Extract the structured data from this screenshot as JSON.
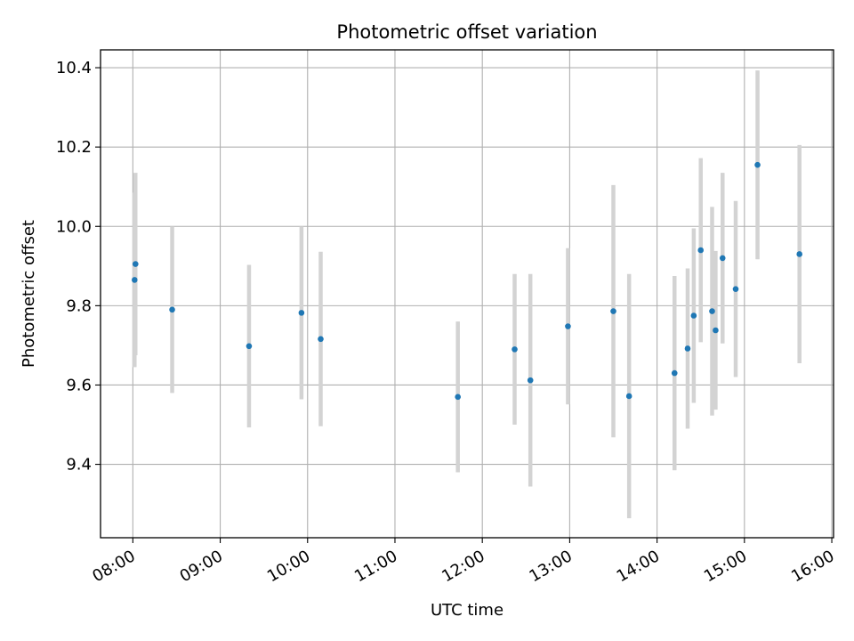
{
  "chart_data": {
    "type": "scatter",
    "title": "Photometric offset variation",
    "xlabel": "UTC time",
    "ylabel": "Photometric offset",
    "x_ticks": [
      "08:00",
      "09:00",
      "10:00",
      "11:00",
      "12:00",
      "13:00",
      "14:00",
      "15:00",
      "16:00"
    ],
    "x_tick_hours": [
      8,
      9,
      10,
      11,
      12,
      13,
      14,
      15,
      16
    ],
    "y_ticks": [
      "9.4",
      "9.6",
      "9.8",
      "10.0",
      "10.2",
      "10.4"
    ],
    "y_tick_values": [
      9.4,
      9.6,
      9.8,
      10.0,
      10.2,
      10.4
    ],
    "xlim_hours": [
      7.63,
      16.02
    ],
    "ylim": [
      9.215,
      10.445
    ],
    "grid": true,
    "colors": {
      "point": "#1f77b4",
      "errorbar": "#d3d3d3",
      "grid": "#b0b0b0"
    },
    "points": [
      {
        "t": 8.02,
        "y": 9.865,
        "err": 0.22
      },
      {
        "t": 8.03,
        "y": 9.905,
        "err": 0.23
      },
      {
        "t": 8.45,
        "y": 9.79,
        "err": 0.21
      },
      {
        "t": 9.33,
        "y": 9.698,
        "err": 0.205
      },
      {
        "t": 9.93,
        "y": 9.782,
        "err": 0.218
      },
      {
        "t": 10.15,
        "y": 9.716,
        "err": 0.22
      },
      {
        "t": 11.72,
        "y": 9.57,
        "err": 0.19
      },
      {
        "t": 12.37,
        "y": 9.69,
        "err": 0.19
      },
      {
        "t": 12.55,
        "y": 9.612,
        "err": 0.268
      },
      {
        "t": 12.98,
        "y": 9.748,
        "err": 0.197
      },
      {
        "t": 13.5,
        "y": 9.786,
        "err": 0.318
      },
      {
        "t": 13.68,
        "y": 9.572,
        "err": 0.308
      },
      {
        "t": 14.2,
        "y": 9.63,
        "err": 0.245
      },
      {
        "t": 14.35,
        "y": 9.692,
        "err": 0.202
      },
      {
        "t": 14.42,
        "y": 9.775,
        "err": 0.22
      },
      {
        "t": 14.5,
        "y": 9.94,
        "err": 0.232
      },
      {
        "t": 14.63,
        "y": 9.786,
        "err": 0.263
      },
      {
        "t": 14.67,
        "y": 9.738,
        "err": 0.2
      },
      {
        "t": 14.75,
        "y": 9.92,
        "err": 0.215
      },
      {
        "t": 14.9,
        "y": 9.842,
        "err": 0.222
      },
      {
        "t": 15.15,
        "y": 10.155,
        "err": 0.238
      },
      {
        "t": 15.63,
        "y": 9.93,
        "err": 0.275
      }
    ]
  }
}
